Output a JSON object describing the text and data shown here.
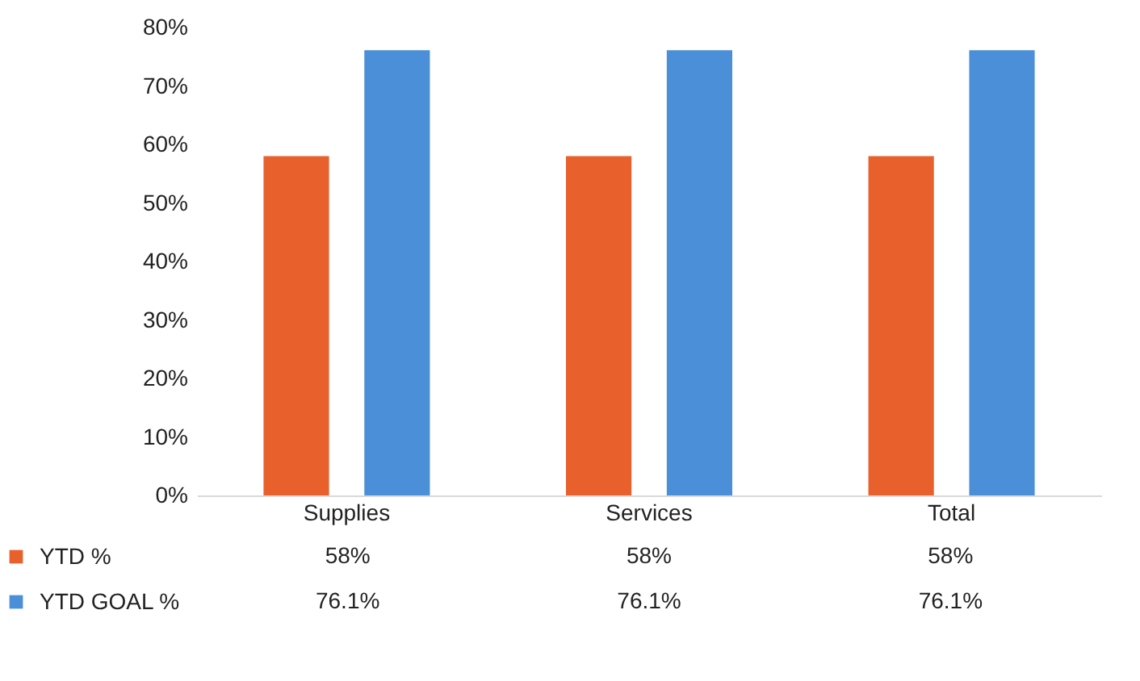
{
  "chart_data": {
    "type": "bar",
    "categories": [
      "Supplies",
      "Services",
      "Total"
    ],
    "series": [
      {
        "name": "YTD %",
        "color": "#e8602c",
        "values": [
          58,
          58,
          58
        ],
        "value_labels": [
          "58%",
          "58%",
          "58%"
        ]
      },
      {
        "name": "YTD GOAL %",
        "color": "#4a8fd8",
        "values": [
          76.1,
          76.1,
          76.1
        ],
        "value_labels": [
          "76.1%",
          "76.1%",
          "76.1%"
        ]
      }
    ],
    "ylim": [
      0,
      80
    ],
    "yticks": [
      {
        "value": 0,
        "label": "0%"
      },
      {
        "value": 10,
        "label": "10%"
      },
      {
        "value": 20,
        "label": "20%"
      },
      {
        "value": 30,
        "label": "30%"
      },
      {
        "value": 40,
        "label": "40%"
      },
      {
        "value": 50,
        "label": "50%"
      },
      {
        "value": 60,
        "label": "60%"
      },
      {
        "value": 70,
        "label": "70%"
      },
      {
        "value": 80,
        "label": "80%"
      }
    ],
    "grid": false,
    "legend": "bottom"
  }
}
